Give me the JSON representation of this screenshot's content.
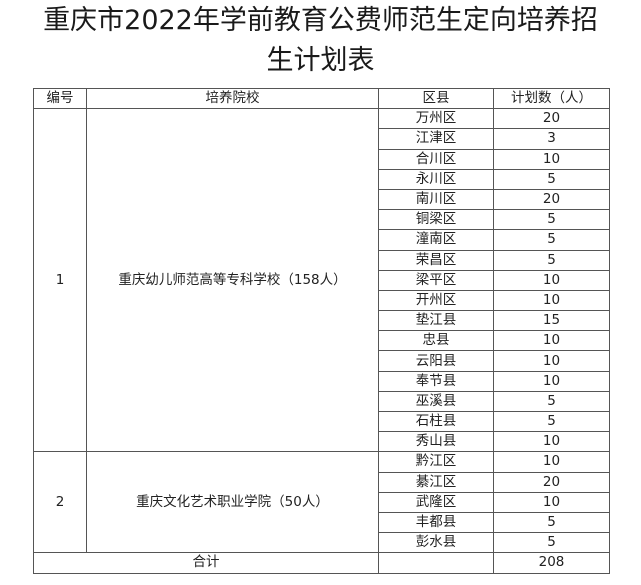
{
  "title_line1": "重庆市2022年学前教育公费师范生定向培养招",
  "title_line2": "生计划表",
  "headers": [
    "编号",
    "培养院校",
    "区县",
    "计划数（人）"
  ],
  "schools": [
    {
      "no": "1",
      "name": "重庆幼儿师范高等专科学校（158人）",
      "rows": [
        [
          "万州区",
          "20"
        ],
        [
          "江津区",
          "3"
        ],
        [
          "合川区",
          "10"
        ],
        [
          "永川区",
          "5"
        ],
        [
          "南川区",
          "20"
        ],
        [
          "铜梁区",
          "5"
        ],
        [
          "潼南区",
          "5"
        ],
        [
          "荣昌区",
          "5"
        ],
        [
          "梁平区",
          "10"
        ],
        [
          "开州区",
          "10"
        ],
        [
          "垫江县",
          "15"
        ],
        [
          "忠县",
          "10"
        ],
        [
          "云阳县",
          "10"
        ],
        [
          "奉节县",
          "10"
        ],
        [
          "巫溪县",
          "5"
        ],
        [
          "石柱县",
          "5"
        ],
        [
          "秀山县",
          "10"
        ]
      ]
    },
    {
      "no": "2",
      "name": "重庆文化艺术职业学院（50人）",
      "rows": [
        [
          "黔江区",
          "10"
        ],
        [
          "綦江区",
          "20"
        ],
        [
          "武隆区",
          "10"
        ],
        [
          "丰都县",
          "5"
        ],
        [
          "彭水县",
          "5"
        ]
      ]
    }
  ],
  "total": {
    "label": "合计",
    "value": "208"
  }
}
